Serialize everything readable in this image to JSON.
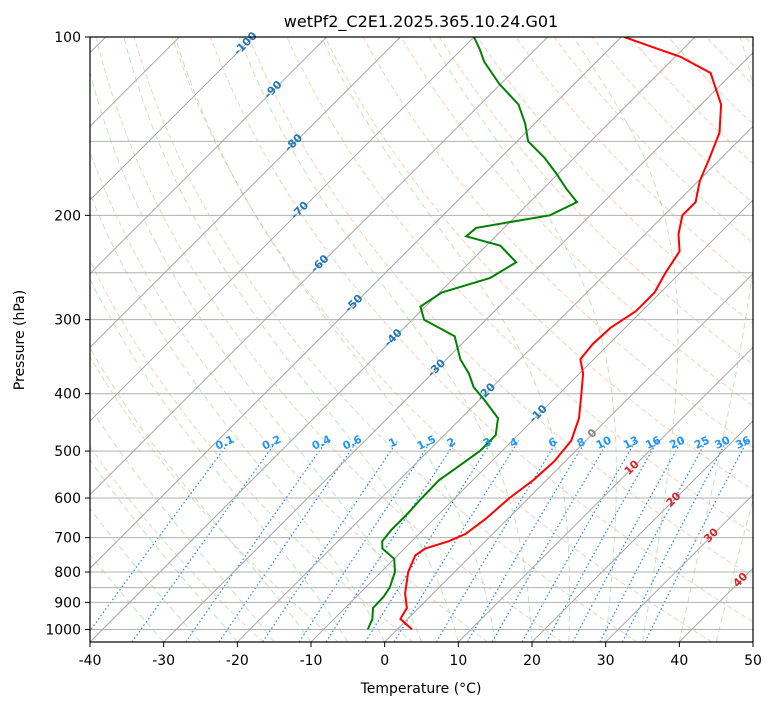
{
  "chart_data": {
    "type": "line",
    "title": "wetPf2_C2E1.2025.365.10.24.G01",
    "xlabel": "Temperature (°C)",
    "ylabel": "Pressure (hPa)",
    "xlim": [
      -40,
      50
    ],
    "ylim": [
      1050,
      100
    ],
    "y_scale": "log",
    "grid": true,
    "x_ticks": [
      -40,
      -30,
      -20,
      -10,
      0,
      10,
      20,
      30,
      40,
      50
    ],
    "y_ticks": [
      1000,
      900,
      800,
      700,
      600,
      500,
      400,
      300,
      200,
      100
    ],
    "isotherm_labels": [
      -100,
      -90,
      -80,
      -70,
      -60,
      -50,
      -40,
      -30,
      -20,
      -10,
      0,
      10,
      20,
      30,
      40
    ],
    "mixing_ratio_labels": [
      "0.1",
      "0.2",
      "0.4",
      "0.6",
      "1",
      "1.5",
      "2",
      "3",
      "4",
      "6",
      "8",
      "10",
      "13",
      "16",
      "20",
      "25",
      "30",
      "36"
    ],
    "series": [
      {
        "role": "temperature",
        "color": "#ff0000",
        "points": [
          [
            1000,
            2.0
          ],
          [
            960,
            -1.0
          ],
          [
            920,
            -1.6
          ],
          [
            870,
            -3.8
          ],
          [
            800,
            -6.3
          ],
          [
            750,
            -7.6
          ],
          [
            730,
            -7.2
          ],
          [
            710,
            -5.0
          ],
          [
            690,
            -3.7
          ],
          [
            650,
            -3.0
          ],
          [
            600,
            -2.6
          ],
          [
            560,
            -1.8
          ],
          [
            520,
            -1.5
          ],
          [
            480,
            -2.0
          ],
          [
            440,
            -4.0
          ],
          [
            400,
            -7.0
          ],
          [
            370,
            -9.5
          ],
          [
            350,
            -11.8
          ],
          [
            330,
            -12.2
          ],
          [
            310,
            -12.0
          ],
          [
            290,
            -10.8
          ],
          [
            270,
            -10.8
          ],
          [
            250,
            -12.0
          ],
          [
            230,
            -13.0
          ],
          [
            215,
            -15.5
          ],
          [
            200,
            -17.5
          ],
          [
            190,
            -17.5
          ],
          [
            175,
            -19.8
          ],
          [
            160,
            -21.6
          ],
          [
            145,
            -23.7
          ],
          [
            130,
            -27.3
          ],
          [
            115,
            -33.0
          ],
          [
            108,
            -39.3
          ],
          [
            104,
            -44.4
          ],
          [
            100,
            -49.6
          ]
        ]
      },
      {
        "role": "dewpoint",
        "color": "#008000",
        "points": [
          [
            1000,
            -4.0
          ],
          [
            960,
            -4.8
          ],
          [
            920,
            -6.2
          ],
          [
            880,
            -6.3
          ],
          [
            850,
            -6.7
          ],
          [
            800,
            -8.1
          ],
          [
            760,
            -10.0
          ],
          [
            730,
            -13.0
          ],
          [
            710,
            -14.0
          ],
          [
            680,
            -14.3
          ],
          [
            640,
            -14.3
          ],
          [
            600,
            -14.5
          ],
          [
            560,
            -14.6
          ],
          [
            530,
            -13.8
          ],
          [
            500,
            -13.0
          ],
          [
            470,
            -13.0
          ],
          [
            440,
            -15.0
          ],
          [
            410,
            -19.3
          ],
          [
            390,
            -22.5
          ],
          [
            370,
            -25.0
          ],
          [
            350,
            -28.1
          ],
          [
            320,
            -32.0
          ],
          [
            300,
            -38.4
          ],
          [
            285,
            -40.7
          ],
          [
            270,
            -39.7
          ],
          [
            255,
            -35.1
          ],
          [
            240,
            -33.7
          ],
          [
            225,
            -38.1
          ],
          [
            217,
            -44.0
          ],
          [
            210,
            -43.8
          ],
          [
            200,
            -35.5
          ],
          [
            190,
            -33.6
          ],
          [
            180,
            -37.0
          ],
          [
            170,
            -40.3
          ],
          [
            160,
            -44.0
          ],
          [
            150,
            -48.5
          ],
          [
            140,
            -51.3
          ],
          [
            130,
            -54.8
          ],
          [
            120,
            -60.2
          ],
          [
            110,
            -65.3
          ],
          [
            105,
            -67.5
          ],
          [
            100,
            -70.0
          ]
        ]
      }
    ]
  }
}
